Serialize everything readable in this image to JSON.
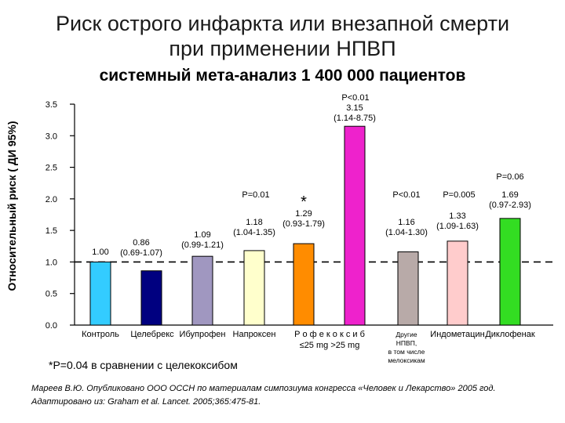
{
  "title_line1": "Риск острого инфаркта или внезапной смерти",
  "title_line2": "при применении НПВП",
  "subtitle": "системный мета-анализ 1 400 000 пациентов",
  "footnote": "*P=0.04  в сравнении с целекоксибом",
  "source_line1": "Мареев В.Ю. Опубликовано ООО ОССН по материалам симпозиума конгресса «Человек и Лекарство» 2005 год.",
  "source_line2": "Адаптировано из:  Graham et al. Lancet. 2005;365:475-81.",
  "chart_data": {
    "type": "bar",
    "title": "",
    "ylabel": "Относительный риск ( ДИ 95%)",
    "ylim": [
      0,
      3.5
    ],
    "yticks": [
      "0.0",
      "0.5",
      "1.0",
      "1.5",
      "2.0",
      "2.5",
      "3.0",
      "3.5"
    ],
    "reference_line": 1.0,
    "categories": [
      "Контроль",
      "Целебрекс",
      "Ибупрофен",
      "Напроксен",
      "Р о ф е к о к с и б ≤25 mg",
      "Р о ф е к о к с и б >25 mg",
      "Другие НПВП, в том числе мелоксикам",
      "Индометацин",
      "Диклофенак"
    ],
    "category_label_groups": [
      {
        "lines": [
          "Контроль"
        ]
      },
      {
        "lines": [
          "Целебрекс"
        ]
      },
      {
        "lines": [
          "Ибупрофен"
        ]
      },
      {
        "lines": [
          "Напроксен"
        ]
      },
      {
        "lines": [
          "Р о ф е к о к с и б",
          "≤25 mg  >25 mg"
        ]
      },
      {
        "lines": [
          "Другие",
          "НПВП,",
          "в том числе",
          "мелоксикам"
        ]
      },
      {
        "lines": [
          "Индометацин"
        ]
      },
      {
        "lines": [
          "Диклофенак"
        ]
      }
    ],
    "values": [
      1.0,
      0.86,
      1.09,
      1.18,
      1.29,
      3.15,
      1.16,
      1.33,
      1.69
    ],
    "colors": [
      "#33ccff",
      "#000080",
      "#a097c0",
      "#ffffcc",
      "#ff8c00",
      "#ee22cc",
      "#b8aaa8",
      "#ffcccc",
      "#33dd22"
    ],
    "value_labels": [
      "1.00",
      "0.86\n(0.69-1.07)",
      "1.09\n(0.99-1.21)",
      "1.18\n(1.04-1.35)",
      "1.29\n(0.93-1.79)",
      "3.15\n(1.14-8.75)",
      "1.16\n(1.04-1.30)",
      "1.33\n(1.09-1.63)",
      "1.69\n(0.97-2.93)"
    ],
    "p_labels": [
      "",
      "",
      "",
      "P=0.01",
      "",
      "P<0.01",
      "P<0.01",
      "P=0.005",
      "P=0.06"
    ],
    "star_label": "*",
    "star_index": 4
  }
}
